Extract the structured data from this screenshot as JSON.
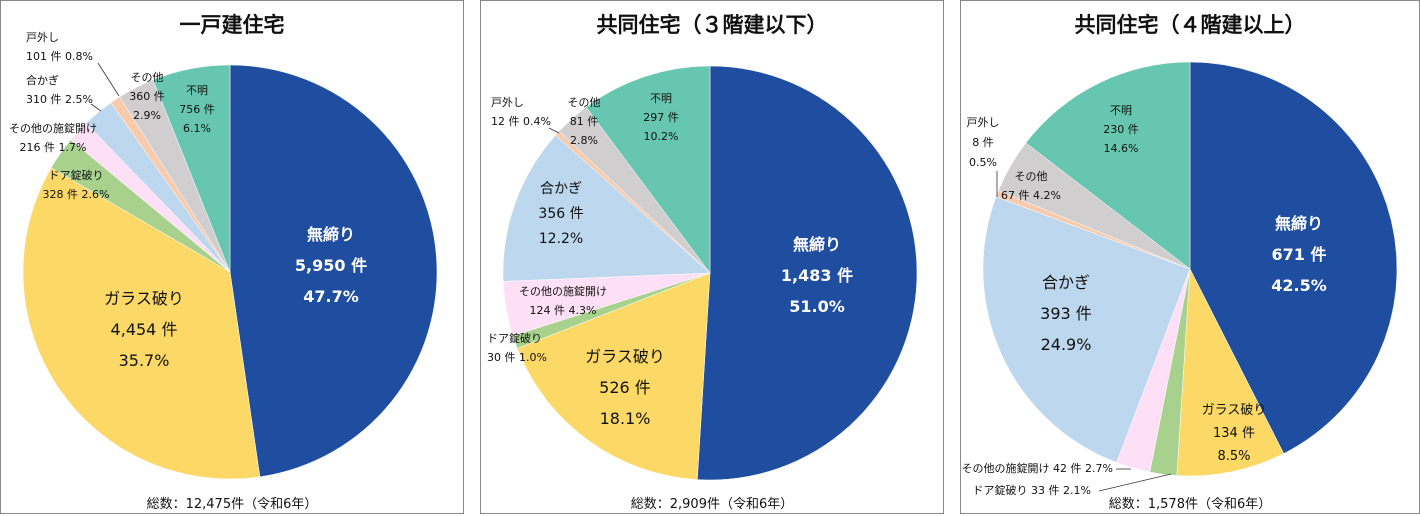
{
  "colors": {
    "無締り": "#1f4ea0",
    "ガラス破り": "#fcd966",
    "ドア錠破り": "#a9d18e",
    "その他の施錠開け": "#fde0f6",
    "合かぎ": "#bdd7ee",
    "戸外し": "#f8cbad",
    "その他": "#d0cece",
    "不明": "#66c6b0"
  },
  "chart_data": [
    {
      "type": "pie",
      "title": "一戸建住宅",
      "total": "総数：12,475件（令和6年）",
      "slices": [
        {
          "name": "無締り",
          "count": "5,950 件",
          "pct": "47.7%",
          "value": 5950
        },
        {
          "name": "ガラス破り",
          "count": "4,454 件",
          "pct": "35.7%",
          "value": 4454
        },
        {
          "name": "ドア錠破り",
          "count": "328 件",
          "pct": "2.6%",
          "value": 328
        },
        {
          "name": "その他の施錠開け",
          "count": "216 件",
          "pct": "1.7%",
          "value": 216
        },
        {
          "name": "合かぎ",
          "count": "310 件",
          "pct": "2.5%",
          "value": 310
        },
        {
          "name": "戸外し",
          "count": "101 件",
          "pct": "0.8%",
          "value": 101
        },
        {
          "name": "その他",
          "count": "360 件",
          "pct": "2.9%",
          "value": 360
        },
        {
          "name": "不明",
          "count": "756 件",
          "pct": "6.1%",
          "value": 756
        }
      ]
    },
    {
      "type": "pie",
      "title": "共同住宅（３階建以下）",
      "total": "総数：2,909件（令和6年）",
      "slices": [
        {
          "name": "無締り",
          "count": "1,483 件",
          "pct": "51.0%",
          "value": 1483
        },
        {
          "name": "ガラス破り",
          "count": "526 件",
          "pct": "18.1%",
          "value": 526
        },
        {
          "name": "ドア錠破り",
          "count": "30 件",
          "pct": "1.0%",
          "value": 30
        },
        {
          "name": "その他の施錠開け",
          "count": "124 件",
          "pct": "4.3%",
          "value": 124
        },
        {
          "name": "合かぎ",
          "count": "356 件",
          "pct": "12.2%",
          "value": 356
        },
        {
          "name": "戸外し",
          "count": "12 件",
          "pct": "0.4%",
          "value": 12
        },
        {
          "name": "その他",
          "count": "81 件",
          "pct": "2.8%",
          "value": 81
        },
        {
          "name": "不明",
          "count": "297 件",
          "pct": "10.2%",
          "value": 297
        }
      ]
    },
    {
      "type": "pie",
      "title": "共同住宅（４階建以上）",
      "total": "総数：1,578件（令和6年）",
      "slices": [
        {
          "name": "無締り",
          "count": "671 件",
          "pct": "42.5%",
          "value": 671
        },
        {
          "name": "ガラス破り",
          "count": "134 件",
          "pct": "8.5%",
          "value": 134
        },
        {
          "name": "ドア錠破り",
          "count": "33 件",
          "pct": "2.1%",
          "value": 33
        },
        {
          "name": "その他の施錠開け",
          "count": "42 件",
          "pct": "2.7%",
          "value": 42
        },
        {
          "name": "合かぎ",
          "count": "393 件",
          "pct": "24.9%",
          "value": 393
        },
        {
          "name": "戸外し",
          "count": "8 件",
          "pct": "0.5%",
          "value": 8
        },
        {
          "name": "その他",
          "count": "67 件",
          "pct": "4.2%",
          "value": 67
        },
        {
          "name": "不明",
          "count": "230 件",
          "pct": "14.6%",
          "value": 230
        }
      ]
    }
  ]
}
